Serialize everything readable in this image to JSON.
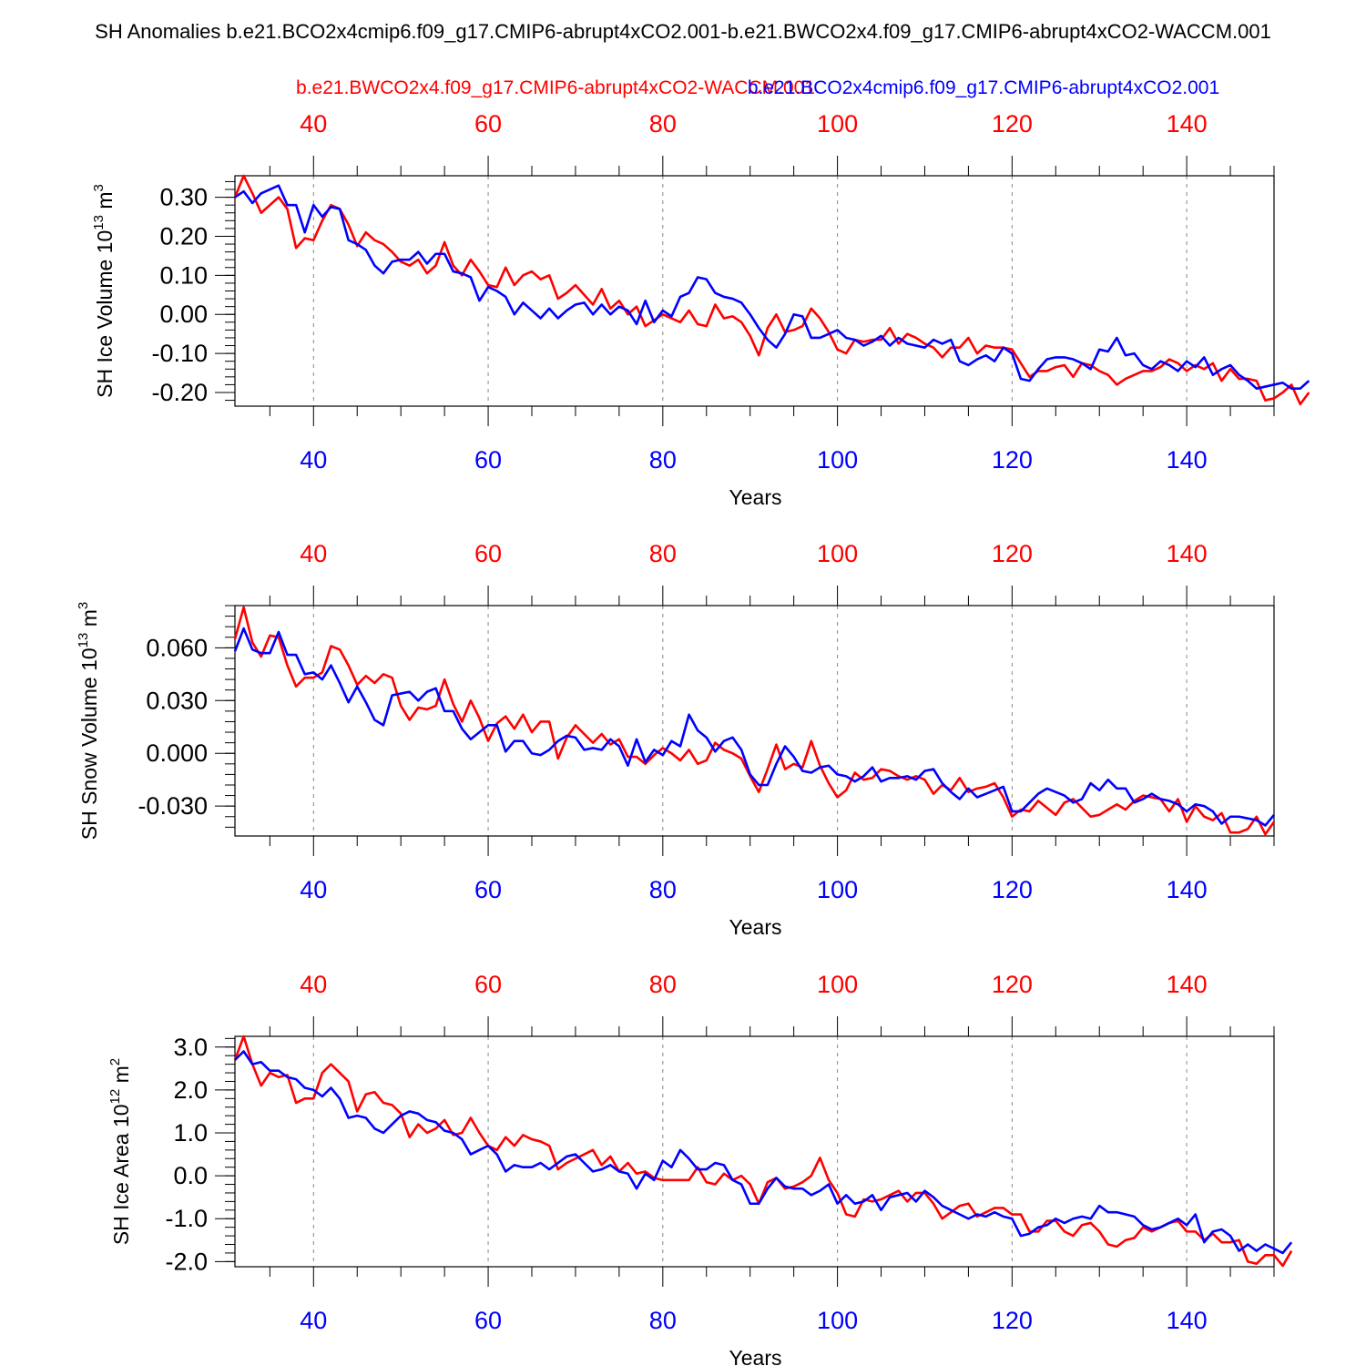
{
  "figure": {
    "title": "SH Anomalies b.e21.BCO2x4cmip6.f09_g17.CMIP6-abrupt4xCO2.001-b.e21.BWCO2x4.f09_g17.CMIP6-abrupt4xCO2-WACCM.001",
    "legend_red": "b.e21.BWCO2x4.f09_g17.CMIP6-abrupt4xCO2-WACCM.001",
    "legend_blue": "b.e21.BCO2x4cmip6.f09_g17.CMIP6-abrupt4xCO2.001"
  },
  "colors": {
    "red": "#ff0000",
    "blue": "#0000ff",
    "axis": "#000000",
    "grid": "#888888"
  },
  "chart_data": [
    {
      "type": "line",
      "ylabel": "SH Ice Volume 10",
      "ylabel_exp": "13",
      "ylabel_unit": " m",
      "ylabel_unit_exp": "3",
      "xlabel": "Years",
      "xlim": [
        31,
        150
      ],
      "ylim": [
        -0.235,
        0.355
      ],
      "x_ticks": [
        40,
        60,
        80,
        100,
        120,
        140
      ],
      "y_ticks": [
        -0.2,
        -0.1,
        0.0,
        0.1,
        0.2,
        0.3
      ],
      "y_tick_labels": [
        "-0.20",
        "-0.10",
        "0.00",
        "0.10",
        "0.20",
        "0.30"
      ],
      "y_minor_step": 0.02,
      "x_start": 31,
      "series": [
        {
          "name": "b.e21.BWCO2x4.f09_g17.CMIP6-abrupt4xCO2-WACCM.001",
          "color": "red",
          "values": [
            0.3,
            0.355,
            0.31,
            0.26,
            0.28,
            0.3,
            0.27,
            0.17,
            0.195,
            0.19,
            0.24,
            0.28,
            0.27,
            0.23,
            0.175,
            0.21,
            0.19,
            0.18,
            0.16,
            0.135,
            0.125,
            0.14,
            0.105,
            0.125,
            0.185,
            0.125,
            0.1,
            0.14,
            0.11,
            0.075,
            0.07,
            0.12,
            0.075,
            0.1,
            0.11,
            0.09,
            0.1,
            0.04,
            0.055,
            0.075,
            0.05,
            0.025,
            0.065,
            0.015,
            0.035,
            0.0,
            0.02,
            -0.03,
            -0.015,
            0.0,
            -0.01,
            -0.02,
            0.01,
            -0.025,
            -0.03,
            0.025,
            -0.01,
            -0.005,
            -0.02,
            -0.055,
            -0.105,
            -0.035,
            0.0,
            -0.045,
            -0.04,
            -0.03,
            0.015,
            -0.01,
            -0.045,
            -0.09,
            -0.1,
            -0.065,
            -0.07,
            -0.065,
            -0.065,
            -0.035,
            -0.075,
            -0.05,
            -0.06,
            -0.075,
            -0.085,
            -0.11,
            -0.085,
            -0.085,
            -0.06,
            -0.1,
            -0.08,
            -0.085,
            -0.085,
            -0.09,
            -0.125,
            -0.16,
            -0.145,
            -0.145,
            -0.135,
            -0.13,
            -0.16,
            -0.125,
            -0.13,
            -0.145,
            -0.155,
            -0.18,
            -0.165,
            -0.155,
            -0.145,
            -0.145,
            -0.135,
            -0.115,
            -0.125,
            -0.145,
            -0.13,
            -0.14,
            -0.125,
            -0.17,
            -0.14,
            -0.165,
            -0.165,
            -0.17,
            -0.22,
            -0.215,
            -0.2,
            -0.18,
            -0.23,
            -0.2
          ]
        },
        {
          "name": "b.e21.BCO2x4cmip6.f09_g17.CMIP6-abrupt4xCO2.001",
          "color": "blue",
          "values": [
            0.3,
            0.315,
            0.285,
            0.31,
            0.32,
            0.33,
            0.28,
            0.28,
            0.21,
            0.28,
            0.25,
            0.275,
            0.27,
            0.19,
            0.18,
            0.165,
            0.125,
            0.105,
            0.135,
            0.14,
            0.14,
            0.16,
            0.13,
            0.155,
            0.155,
            0.11,
            0.105,
            0.095,
            0.035,
            0.07,
            0.06,
            0.045,
            0.0,
            0.03,
            0.01,
            -0.01,
            0.015,
            -0.01,
            0.01,
            0.025,
            0.03,
            0.0,
            0.025,
            0.0,
            0.02,
            0.01,
            -0.025,
            0.035,
            -0.02,
            0.01,
            -0.005,
            0.045,
            0.055,
            0.095,
            0.09,
            0.055,
            0.045,
            0.04,
            0.03,
            0.0,
            -0.035,
            -0.065,
            -0.085,
            -0.05,
            0.0,
            -0.005,
            -0.06,
            -0.06,
            -0.05,
            -0.04,
            -0.06,
            -0.065,
            -0.08,
            -0.07,
            -0.055,
            -0.08,
            -0.06,
            -0.075,
            -0.08,
            -0.085,
            -0.065,
            -0.075,
            -0.065,
            -0.12,
            -0.13,
            -0.115,
            -0.105,
            -0.12,
            -0.085,
            -0.1,
            -0.165,
            -0.17,
            -0.14,
            -0.115,
            -0.11,
            -0.11,
            -0.115,
            -0.125,
            -0.14,
            -0.09,
            -0.095,
            -0.06,
            -0.105,
            -0.1,
            -0.13,
            -0.14,
            -0.12,
            -0.13,
            -0.145,
            -0.12,
            -0.135,
            -0.11,
            -0.155,
            -0.14,
            -0.13,
            -0.155,
            -0.17,
            -0.19,
            -0.185,
            -0.18,
            -0.175,
            -0.19,
            -0.19,
            -0.17
          ]
        }
      ]
    },
    {
      "type": "line",
      "ylabel": "SH Snow Volume 10",
      "ylabel_exp": "13",
      "ylabel_unit": " m",
      "ylabel_unit_exp": "3",
      "xlabel": "Years",
      "xlim": [
        31,
        150
      ],
      "ylim": [
        -0.047,
        0.084
      ],
      "x_ticks": [
        40,
        60,
        80,
        100,
        120,
        140
      ],
      "y_ticks": [
        -0.03,
        0.0,
        0.03,
        0.06
      ],
      "y_tick_labels": [
        "-0.030",
        "0.000",
        "0.030",
        "0.060"
      ],
      "y_minor_step": 0.006,
      "x_start": 31,
      "series": [
        {
          "name": "b.e21.BWCO2x4.f09_g17.CMIP6-abrupt4xCO2-WACCM.001",
          "color": "red",
          "values": [
            0.065,
            0.083,
            0.063,
            0.055,
            0.067,
            0.066,
            0.05,
            0.038,
            0.043,
            0.043,
            0.046,
            0.061,
            0.059,
            0.05,
            0.039,
            0.044,
            0.04,
            0.045,
            0.043,
            0.027,
            0.019,
            0.026,
            0.025,
            0.027,
            0.042,
            0.028,
            0.018,
            0.03,
            0.02,
            0.007,
            0.017,
            0.021,
            0.014,
            0.022,
            0.012,
            0.018,
            0.018,
            -0.003,
            0.009,
            0.016,
            0.011,
            0.006,
            0.011,
            0.005,
            0.008,
            -0.002,
            -0.002,
            -0.006,
            -0.001,
            0.003,
            0.0,
            -0.004,
            0.002,
            -0.006,
            -0.004,
            0.006,
            0.002,
            0.0,
            -0.003,
            -0.013,
            -0.022,
            -0.009,
            0.005,
            -0.009,
            -0.006,
            -0.008,
            0.007,
            -0.007,
            -0.017,
            -0.025,
            -0.021,
            -0.011,
            -0.015,
            -0.014,
            -0.009,
            -0.01,
            -0.013,
            -0.015,
            -0.013,
            -0.015,
            -0.023,
            -0.018,
            -0.021,
            -0.014,
            -0.022,
            -0.02,
            -0.019,
            -0.017,
            -0.025,
            -0.036,
            -0.032,
            -0.033,
            -0.027,
            -0.031,
            -0.035,
            -0.028,
            -0.026,
            -0.031,
            -0.036,
            -0.035,
            -0.032,
            -0.029,
            -0.032,
            -0.027,
            -0.024,
            -0.025,
            -0.026,
            -0.033,
            -0.026,
            -0.039,
            -0.03,
            -0.036,
            -0.038,
            -0.034,
            -0.045,
            -0.045,
            -0.043,
            -0.036,
            -0.046,
            -0.039
          ]
        },
        {
          "name": "b.e21.BCO2x4cmip6.f09_g17.CMIP6-abrupt4xCO2.001",
          "color": "blue",
          "values": [
            0.058,
            0.071,
            0.059,
            0.057,
            0.057,
            0.069,
            0.056,
            0.056,
            0.045,
            0.046,
            0.042,
            0.05,
            0.04,
            0.029,
            0.038,
            0.029,
            0.019,
            0.016,
            0.033,
            0.034,
            0.035,
            0.03,
            0.035,
            0.037,
            0.024,
            0.024,
            0.014,
            0.008,
            0.012,
            0.016,
            0.016,
            0.001,
            0.007,
            0.007,
            0.0,
            -0.001,
            0.002,
            0.007,
            0.01,
            0.009,
            0.002,
            0.003,
            0.002,
            0.008,
            0.004,
            -0.007,
            0.008,
            -0.005,
            0.002,
            -0.001,
            0.007,
            0.004,
            0.022,
            0.013,
            0.009,
            0.001,
            0.007,
            0.009,
            0.002,
            -0.012,
            -0.018,
            -0.018,
            -0.006,
            0.004,
            -0.002,
            -0.01,
            -0.011,
            -0.008,
            -0.007,
            -0.012,
            -0.013,
            -0.016,
            -0.013,
            -0.008,
            -0.016,
            -0.014,
            -0.014,
            -0.013,
            -0.015,
            -0.01,
            -0.009,
            -0.017,
            -0.022,
            -0.026,
            -0.02,
            -0.025,
            -0.023,
            -0.021,
            -0.019,
            -0.033,
            -0.033,
            -0.028,
            -0.023,
            -0.02,
            -0.022,
            -0.024,
            -0.028,
            -0.026,
            -0.017,
            -0.021,
            -0.015,
            -0.02,
            -0.02,
            -0.028,
            -0.026,
            -0.023,
            -0.026,
            -0.027,
            -0.029,
            -0.033,
            -0.029,
            -0.03,
            -0.033,
            -0.04,
            -0.036,
            -0.036,
            -0.037,
            -0.038,
            -0.041,
            -0.035
          ]
        }
      ]
    },
    {
      "type": "line",
      "ylabel": "SH Ice Area 10",
      "ylabel_exp": "12",
      "ylabel_unit": " m",
      "ylabel_unit_exp": "2",
      "xlabel": "Years",
      "xlim": [
        31,
        150
      ],
      "ylim": [
        -2.12,
        3.25
      ],
      "x_ticks": [
        40,
        60,
        80,
        100,
        120,
        140
      ],
      "y_ticks": [
        -2.0,
        -1.0,
        0.0,
        1.0,
        2.0,
        3.0
      ],
      "y_tick_labels": [
        "-2.0",
        "-1.0",
        "0.0",
        "1.0",
        "2.0",
        "3.0"
      ],
      "y_minor_step": 0.2,
      "x_start": 31,
      "series": [
        {
          "name": "b.e21.BWCO2x4.f09_g17.CMIP6-abrupt4xCO2-WACCM.001",
          "color": "red",
          "values": [
            2.7,
            3.25,
            2.6,
            2.1,
            2.4,
            2.3,
            2.35,
            1.7,
            1.8,
            1.8,
            2.4,
            2.6,
            2.4,
            2.2,
            1.5,
            1.9,
            1.95,
            1.7,
            1.65,
            1.45,
            0.9,
            1.2,
            1.0,
            1.1,
            1.3,
            0.95,
            1.0,
            1.35,
            1.0,
            0.7,
            0.6,
            0.9,
            0.7,
            0.95,
            0.85,
            0.8,
            0.7,
            0.15,
            0.3,
            0.4,
            0.5,
            0.6,
            0.25,
            0.45,
            0.1,
            0.3,
            0.05,
            0.1,
            -0.05,
            -0.1,
            -0.1,
            -0.1,
            -0.1,
            0.2,
            -0.15,
            -0.2,
            0.05,
            -0.1,
            0.0,
            -0.2,
            -0.65,
            -0.15,
            -0.05,
            -0.3,
            -0.25,
            -0.15,
            0.0,
            0.42,
            -0.1,
            -0.4,
            -0.9,
            -0.95,
            -0.55,
            -0.6,
            -0.55,
            -0.45,
            -0.35,
            -0.6,
            -0.4,
            -0.4,
            -0.65,
            -1.0,
            -0.85,
            -0.7,
            -0.65,
            -0.95,
            -0.85,
            -0.75,
            -0.75,
            -0.9,
            -0.9,
            -1.3,
            -1.3,
            -1.05,
            -1.05,
            -1.3,
            -1.4,
            -1.15,
            -1.1,
            -1.3,
            -1.6,
            -1.65,
            -1.5,
            -1.45,
            -1.2,
            -1.3,
            -1.2,
            -1.1,
            -1.05,
            -1.3,
            -1.3,
            -1.5,
            -1.35,
            -1.55,
            -1.55,
            -1.5,
            -2.0,
            -2.05,
            -1.85,
            -1.85,
            -2.1,
            -1.75
          ]
        },
        {
          "name": "b.e21.BCO2x4cmip6.f09_g17.CMIP6-abrupt4xCO2.001",
          "color": "blue",
          "values": [
            2.7,
            2.9,
            2.6,
            2.65,
            2.45,
            2.45,
            2.3,
            2.25,
            2.05,
            2.0,
            1.85,
            2.05,
            1.8,
            1.35,
            1.4,
            1.35,
            1.1,
            1.0,
            1.2,
            1.4,
            1.5,
            1.45,
            1.3,
            1.25,
            1.05,
            1.0,
            0.85,
            0.5,
            0.6,
            0.7,
            0.5,
            0.1,
            0.25,
            0.2,
            0.2,
            0.3,
            0.15,
            0.3,
            0.45,
            0.5,
            0.3,
            0.1,
            0.15,
            0.25,
            0.1,
            0.05,
            -0.3,
            0.05,
            -0.1,
            0.35,
            0.2,
            0.6,
            0.4,
            0.15,
            0.15,
            0.3,
            0.25,
            -0.1,
            -0.2,
            -0.65,
            -0.65,
            -0.3,
            -0.05,
            -0.25,
            -0.3,
            -0.3,
            -0.45,
            -0.35,
            -0.2,
            -0.65,
            -0.45,
            -0.65,
            -0.6,
            -0.45,
            -0.8,
            -0.5,
            -0.45,
            -0.4,
            -0.6,
            -0.35,
            -0.5,
            -0.7,
            -0.8,
            -0.9,
            -1.0,
            -0.9,
            -0.95,
            -0.85,
            -0.95,
            -1.0,
            -1.4,
            -1.35,
            -1.2,
            -1.15,
            -1.0,
            -1.1,
            -1.0,
            -0.95,
            -1.0,
            -0.7,
            -0.85,
            -0.85,
            -0.9,
            -0.95,
            -1.15,
            -1.25,
            -1.2,
            -1.1,
            -1.0,
            -1.15,
            -0.9,
            -1.55,
            -1.3,
            -1.25,
            -1.4,
            -1.75,
            -1.6,
            -1.75,
            -1.6,
            -1.7,
            -1.8,
            -1.55
          ]
        }
      ]
    }
  ]
}
